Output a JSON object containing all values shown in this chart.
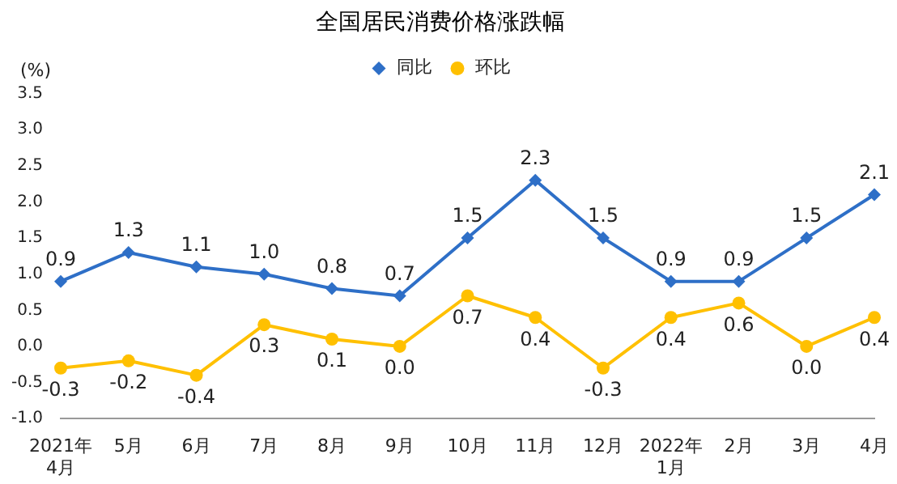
{
  "chart_data": {
    "type": "line",
    "title": "全国居民消费价格涨跌幅",
    "ylabel": "(%)",
    "categories": [
      "2021年\n4月",
      "5月",
      "6月",
      "7月",
      "8月",
      "9月",
      "10月",
      "11月",
      "12月",
      "2022年\n1月",
      "2月",
      "3月",
      "4月"
    ],
    "series": [
      {
        "name": "同比",
        "color": "#2e6fc7",
        "marker": "diamond",
        "values": [
          0.9,
          1.3,
          1.1,
          1.0,
          0.8,
          0.7,
          1.5,
          2.3,
          1.5,
          0.9,
          0.9,
          1.5,
          2.1
        ],
        "value_labels": [
          "0.9",
          "1.3",
          "1.1",
          "1.0",
          "0.8",
          "0.7",
          "1.5",
          "2.3",
          "1.5",
          "0.9",
          "0.9",
          "1.5",
          "2.1"
        ]
      },
      {
        "name": "环比",
        "color": "#ffc000",
        "marker": "circle",
        "values": [
          -0.3,
          -0.2,
          -0.4,
          0.3,
          0.1,
          0.0,
          0.7,
          0.4,
          -0.3,
          0.4,
          0.6,
          0.0,
          0.4
        ],
        "value_labels": [
          "-0.3",
          "-0.2",
          "-0.4",
          "0.3",
          "0.1",
          "0.0",
          "0.7",
          "0.4",
          "-0.3",
          "0.4",
          "0.6",
          "0.0",
          "0.4"
        ]
      }
    ],
    "ylim": [
      -1,
      3.5
    ],
    "yticks": [
      {
        "value": -1,
        "label": "-1.0"
      },
      {
        "value": -0.5,
        "label": "-0.5"
      },
      {
        "value": 0,
        "label": "0.0"
      },
      {
        "value": 0.5,
        "label": "0.5"
      },
      {
        "value": 1,
        "label": "1.0"
      },
      {
        "value": 1.5,
        "label": "1.5"
      },
      {
        "value": 2,
        "label": "2.0"
      },
      {
        "value": 2.5,
        "label": "2.5"
      },
      {
        "value": 3,
        "label": "3.0"
      },
      {
        "value": 3.5,
        "label": "3.5"
      }
    ],
    "grid": false,
    "legend": "top",
    "line_style": "solid"
  }
}
